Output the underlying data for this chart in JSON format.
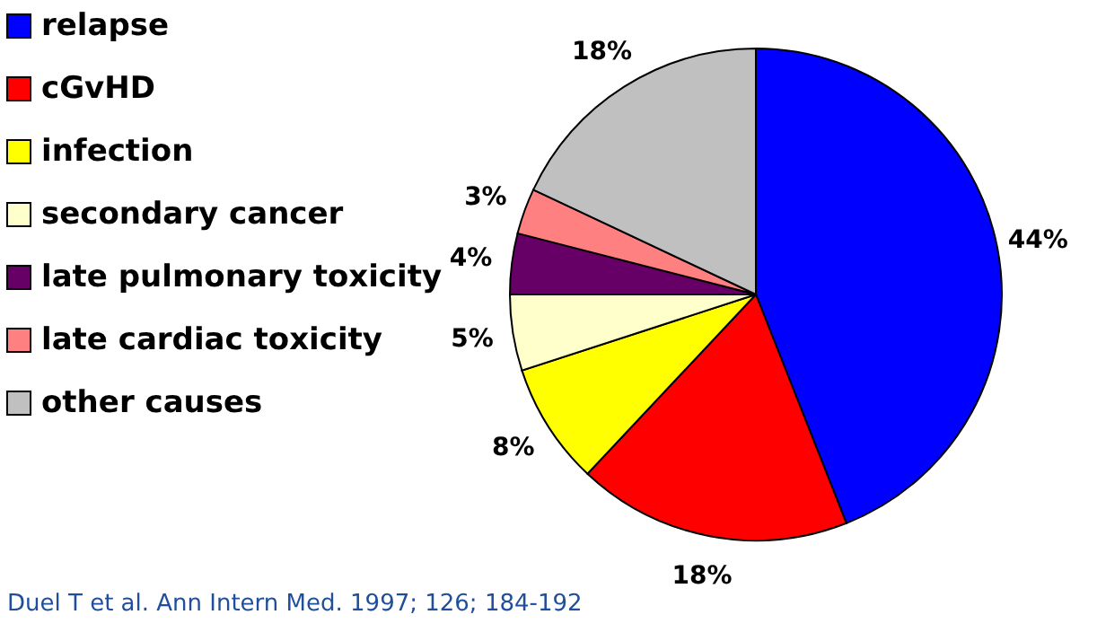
{
  "chart_data": {
    "type": "pie",
    "categories": [
      "relapse",
      "cGvHD",
      "infection",
      "secondary cancer",
      "late pulmonary toxicity",
      "late cardiac toxicity",
      "other causes"
    ],
    "values": [
      44,
      18,
      8,
      5,
      4,
      3,
      18
    ],
    "colors": [
      "#0000ff",
      "#ff0000",
      "#ffff00",
      "#ffffcc",
      "#660066",
      "#ff8080",
      "#c0c0c0"
    ],
    "value_labels": [
      "44%",
      "18%",
      "8%",
      "5%",
      "4%",
      "3%",
      "18%"
    ],
    "legend": "top left",
    "annotations": [
      "Duel T et al. Ann Intern Med.  1997; 126; 184-192"
    ]
  }
}
